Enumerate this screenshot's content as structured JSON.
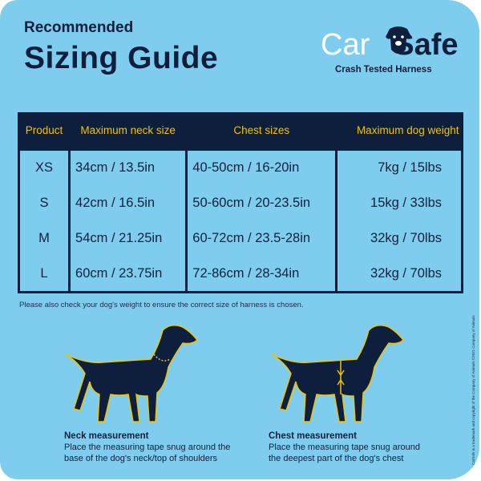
{
  "header": {
    "subtitle": "Recommended",
    "title": "Sizing Guide"
  },
  "brand": {
    "logo_text_light": "Car",
    "logo_text_bold": "Safe",
    "tagline": "Crash Tested Harness"
  },
  "table": {
    "headers": [
      "Product",
      "Maximum neck size",
      "Chest sizes",
      "Maximum dog weight"
    ],
    "rows": [
      [
        "XS",
        "34cm  /  13.5in",
        "40-50cm  /  16-20in",
        "7kg  /  15lbs"
      ],
      [
        "S",
        "42cm  /  16.5in",
        "50-60cm  /  20-23.5in",
        "15kg  /  33lbs"
      ],
      [
        "M",
        "54cm  /  21.25in",
        "60-72cm  /  23.5-28in",
        "32kg  /  70lbs"
      ],
      [
        "L",
        "60cm  /  23.75in",
        "72-86cm  /  28-34in",
        "32kg  /  70lbs"
      ]
    ]
  },
  "note": "Please also check your dog's weight to ensure the correct size of harness is chosen.",
  "copyright": "CarSafe is a trademark and copyright of the Company of Animals ©2021 Company of Animals",
  "measurements": [
    {
      "title": "Neck measurement",
      "line1": "Place the measuring tape snug around the",
      "line2": "base of the dog's neck/top of shoulders"
    },
    {
      "title": "Chest measurement",
      "line1": "Place the measuring tape snug around",
      "line2": "the deepest part of the dog's chest"
    }
  ],
  "colors": {
    "background": "#7fcdee",
    "navy": "#0d1f3c",
    "accent": "#f2c200"
  }
}
